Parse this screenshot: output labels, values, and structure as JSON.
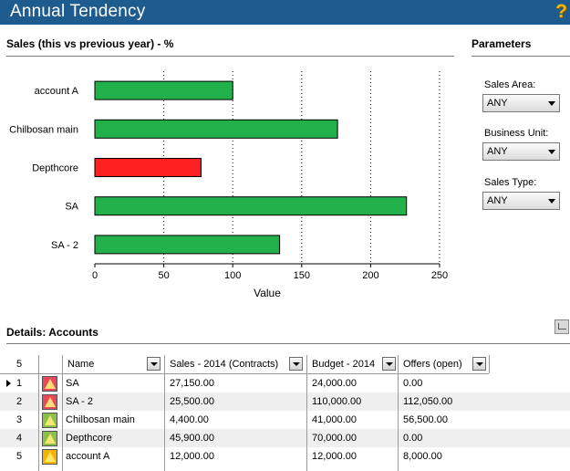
{
  "window": {
    "title": "Annual Tendency"
  },
  "chart_section": {
    "title": "Sales (this vs previous year) - %"
  },
  "parameters": {
    "title": "Parameters",
    "fields": [
      {
        "label": "Sales Area:",
        "value": "ANY"
      },
      {
        "label": "Business Unit:",
        "value": "ANY"
      },
      {
        "label": "Sales Type:",
        "value": "ANY"
      }
    ]
  },
  "chart_data": {
    "type": "bar",
    "orientation": "horizontal",
    "categories": [
      "account A",
      "Chilbosan main",
      "Depthcore",
      "SA",
      "SA - 2"
    ],
    "values": [
      100,
      176,
      77,
      226,
      134
    ],
    "colors": [
      "#22b04b",
      "#22b04b",
      "#ff2020",
      "#22b04b",
      "#22b04b"
    ],
    "xlabel": "Value",
    "xlim": [
      0,
      250
    ],
    "xticks": [
      0,
      50,
      100,
      150,
      200,
      250
    ],
    "grid": "vertical-dotted"
  },
  "details": {
    "title": "Details: Accounts",
    "row_count": "5",
    "columns": [
      "Name",
      "Sales - 2014 (Contracts)",
      "Budget - 2014",
      "Offers (open)"
    ],
    "rows": [
      {
        "num": "1",
        "name": "SA",
        "sales": "27,150.00",
        "budget": "24,000.00",
        "offers": "0.00",
        "icon_color": "#e8485a",
        "icon": "warning-red-icon"
      },
      {
        "num": "2",
        "name": "SA - 2",
        "sales": "25,500.00",
        "budget": "110,000.00",
        "offers": "112,050.00",
        "icon_color": "#e8485a",
        "icon": "warning-red-icon"
      },
      {
        "num": "3",
        "name": "Chilbosan main",
        "sales": "4,400.00",
        "budget": "41,000.00",
        "offers": "56,500.00",
        "icon_color": "#8cc04a",
        "icon": "warning-green-icon"
      },
      {
        "num": "4",
        "name": "Depthcore",
        "sales": "45,900.00",
        "budget": "70,000.00",
        "offers": "0.00",
        "icon_color": "#8cc04a",
        "icon": "warning-green-icon"
      },
      {
        "num": "5",
        "name": "account A",
        "sales": "12,000.00",
        "budget": "12,000.00",
        "offers": "8,000.00",
        "icon_color": "#f2b400",
        "icon": "warning-yellow-icon"
      }
    ]
  }
}
